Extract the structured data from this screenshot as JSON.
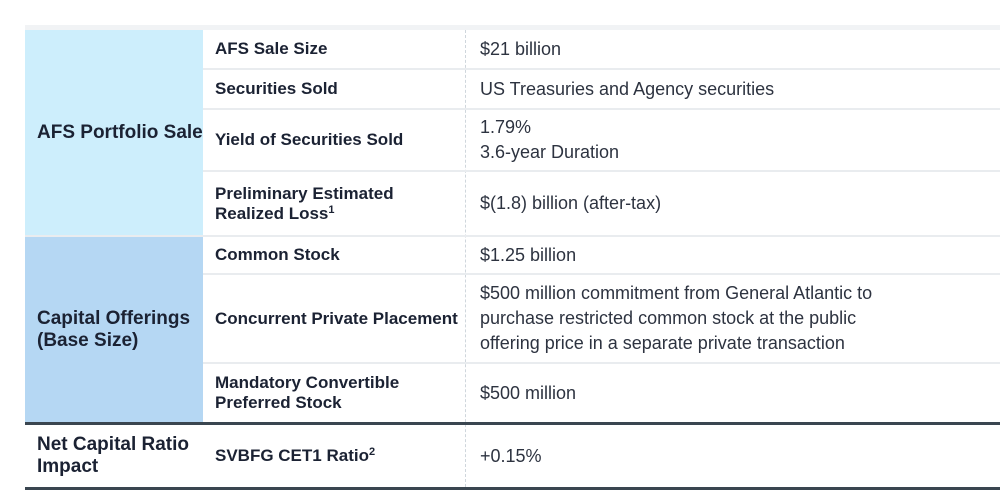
{
  "sections": [
    {
      "title": "AFS Portfolio Sale",
      "rows": [
        {
          "label": "AFS Sale Size",
          "value": "$21 billion"
        },
        {
          "label": "Securities Sold",
          "value": "US Treasuries and Agency securities"
        },
        {
          "label": "Yield of Securities Sold",
          "value_lines": [
            "1.79%",
            "3.6-year Duration"
          ]
        },
        {
          "label": "Preliminary Estimated Realized Loss",
          "label_sup": "1",
          "value": "$(1.8) billion (after-tax)"
        }
      ]
    },
    {
      "title": "Capital Offerings (Base Size)",
      "rows": [
        {
          "label": "Common Stock",
          "value": "$1.25 billion"
        },
        {
          "label": "Concurrent Private Placement",
          "value_lines": [
            "$500 million commitment from General Atlantic to",
            "purchase restricted common stock at the public",
            "offering price in a separate private transaction"
          ]
        },
        {
          "label": "Mandatory Convertible Preferred Stock",
          "value": "$500 million"
        }
      ]
    },
    {
      "title": "Net Capital Ratio Impact",
      "rows": [
        {
          "label": "SVBFG CET1 Ratio",
          "label_sup": "2",
          "value": "+0.15%"
        }
      ]
    }
  ],
  "colors": {
    "section1_bg": "#cdeefc",
    "section2_bg": "#b5d7f3",
    "rule_dark": "#3a4650"
  }
}
